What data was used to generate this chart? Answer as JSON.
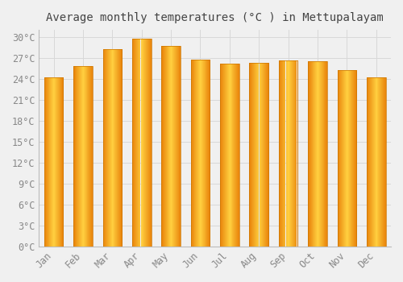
{
  "title": "Average monthly temperatures (°C ) in Mettupalayam",
  "months": [
    "Jan",
    "Feb",
    "Mar",
    "Apr",
    "May",
    "Jun",
    "Jul",
    "Aug",
    "Sep",
    "Oct",
    "Nov",
    "Dec"
  ],
  "values": [
    24.2,
    25.8,
    28.2,
    29.8,
    28.7,
    26.8,
    26.2,
    26.3,
    26.6,
    26.5,
    25.3,
    24.2
  ],
  "bar_color_left": "#E8820A",
  "bar_color_center": "#FFD040",
  "bar_color_right": "#E8820A",
  "ylim": [
    0,
    31
  ],
  "yticks": [
    0,
    3,
    6,
    9,
    12,
    15,
    18,
    21,
    24,
    27,
    30
  ],
  "ytick_labels": [
    "0°C",
    "3°C",
    "6°C",
    "9°C",
    "12°C",
    "15°C",
    "18°C",
    "21°C",
    "24°C",
    "27°C",
    "30°C"
  ],
  "background_color": "#f0f0f0",
  "grid_color": "#d8d8d8",
  "title_fontsize": 10,
  "tick_fontsize": 8.5,
  "bar_width": 0.65,
  "n_gradient_steps": 50
}
